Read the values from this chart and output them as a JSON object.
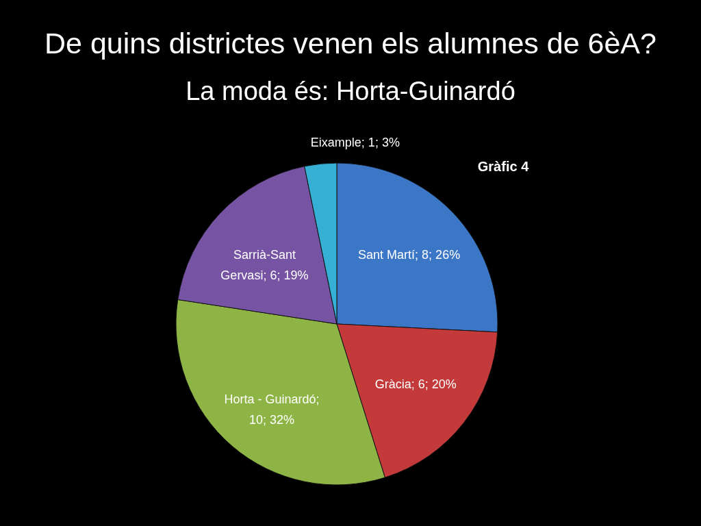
{
  "chart_data": {
    "type": "pie",
    "title": "De quins districtes venen els alumnes de 6èA?",
    "subtitle": "La moda és: Horta-Guinardó",
    "annotations": [
      "Gràfic 4"
    ],
    "categories": [
      "Sant Martí",
      "Gràcia",
      "Horta - Guinardó",
      "Sarrià-Sant Gervasi",
      "Eixample"
    ],
    "values": [
      8,
      6,
      10,
      6,
      1
    ],
    "colors": [
      "#3b77c6",
      "#c43a3a",
      "#8db444",
      "#7653a3",
      "#36afd4"
    ],
    "value_labels": [
      "; 8; 26%",
      "; 6; 20%",
      "; 10; 32%",
      "; 6; 19%",
      "; 1; 3%"
    ]
  }
}
